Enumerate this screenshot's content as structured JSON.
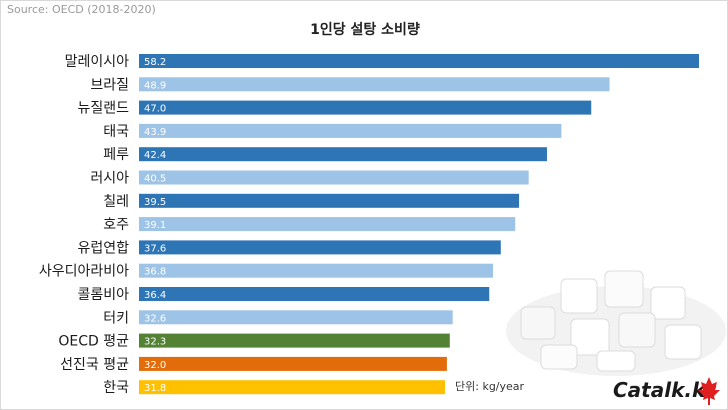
{
  "source": "Source: OECD (2018-2020)",
  "unit_note": "단위: kg/year",
  "logo_text": "Catalk.kr",
  "chart_data": {
    "type": "bar",
    "orientation": "horizontal",
    "title": "1인당 설탕 소비량",
    "xlabel": "",
    "ylabel": "",
    "xlim": [
      0,
      58.2
    ],
    "grid": false,
    "legend": "none",
    "categories": [
      "말레이시아",
      "브라질",
      "뉴질랜드",
      "태국",
      "페루",
      "러시아",
      "칠레",
      "호주",
      "유럽연합",
      "사우디아라비아",
      "콜롬비아",
      "터키",
      "OECD 평균",
      "선진국 평균",
      "한국"
    ],
    "values": [
      58.2,
      48.9,
      47.0,
      43.9,
      42.4,
      40.5,
      39.5,
      39.1,
      37.6,
      36.8,
      36.4,
      32.6,
      32.3,
      32.0,
      31.8
    ],
    "colors": [
      "#2e75b6",
      "#9dc3e6",
      "#2e75b6",
      "#9dc3e6",
      "#2e75b6",
      "#9dc3e6",
      "#2e75b6",
      "#9dc3e6",
      "#2e75b6",
      "#9dc3e6",
      "#2e75b6",
      "#9dc3e6",
      "#548235",
      "#e36c0a",
      "#ffc000"
    ]
  }
}
